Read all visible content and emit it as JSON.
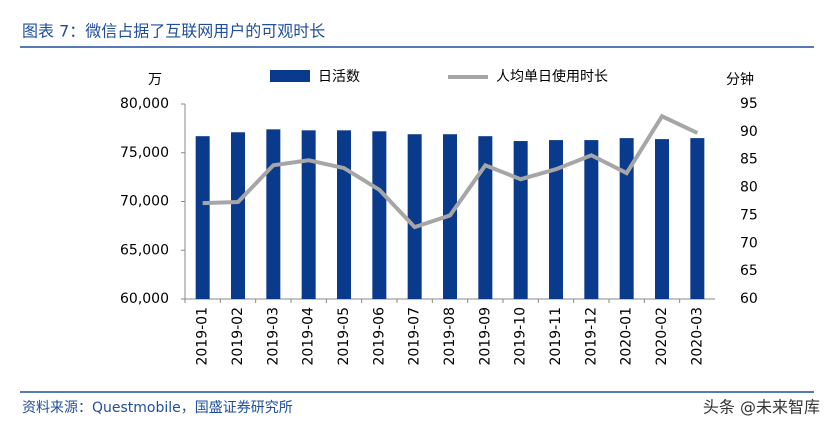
{
  "chart_data": {
    "type": "bar-line",
    "title": "图表 7：微信占据了互联网用户的可观时长",
    "y_label": "万",
    "y2_label": "分钟",
    "source": "资料来源：Questmobile，国盛证券研究所",
    "watermark": "头条 @未来智库",
    "categories": [
      "2019-01",
      "2019-02",
      "2019-03",
      "2019-04",
      "2019-05",
      "2019-06",
      "2019-07",
      "2019-08",
      "2019-09",
      "2019-10",
      "2019-11",
      "2019-12",
      "2020-01",
      "2020-02",
      "2020-03"
    ],
    "series": [
      {
        "name": "日活数",
        "type": "bar",
        "color": "#0a3a8c",
        "values": [
          76700,
          77100,
          77400,
          77300,
          77300,
          77200,
          76900,
          76900,
          76700,
          76200,
          76300,
          76300,
          76500,
          76400,
          76500
        ]
      },
      {
        "name": "人均单日使用时长",
        "type": "line",
        "axis": "y2",
        "color": "#a6a6a6",
        "values": [
          77.2,
          77.4,
          84,
          84.9,
          83.5,
          79.6,
          72.9,
          75,
          84,
          81.5,
          83.3,
          85.8,
          82.6,
          92.8,
          89.8
        ]
      }
    ],
    "ylim": [
      60000,
      80000
    ],
    "yticks": [
      {
        "value": 60000,
        "label": "60,000"
      },
      {
        "value": 65000,
        "label": "65,000"
      },
      {
        "value": 70000,
        "label": "70,000"
      },
      {
        "value": 75000,
        "label": "75,000"
      },
      {
        "value": 80000,
        "label": "80,000"
      }
    ],
    "y2lim": [
      60,
      95
    ],
    "y2ticks": [
      60,
      65,
      70,
      75,
      80,
      85,
      90,
      95
    ]
  }
}
